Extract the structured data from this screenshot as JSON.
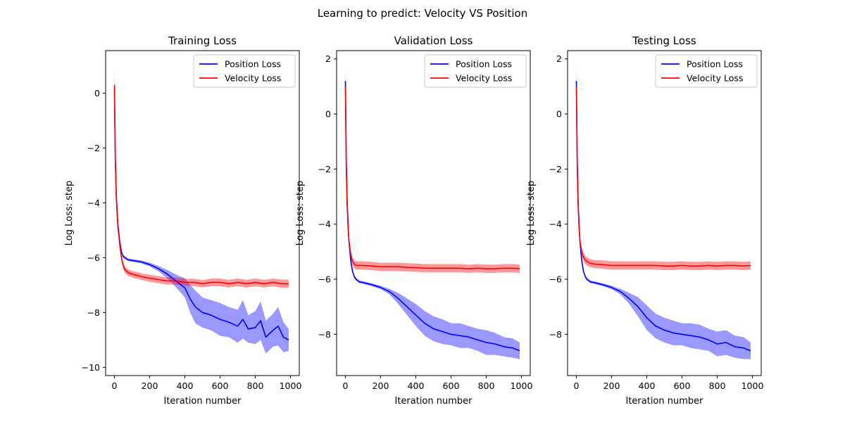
{
  "figure": {
    "title": "Learning to predict: Velocity VS Position"
  },
  "colors": {
    "position": "#0000ff",
    "velocity": "#ff0000"
  },
  "chart_data": [
    {
      "type": "line",
      "title": "Training Loss",
      "xlabel": "Iteration number",
      "ylabel": "Log Loss: step",
      "xlim": [
        -50,
        1050
      ],
      "ylim": [
        -10.3,
        1.55
      ],
      "xticks": [
        0,
        200,
        400,
        600,
        800,
        1000
      ],
      "yticks": [
        -10,
        -8,
        -6,
        -4,
        -2,
        0
      ],
      "legend": "top-right",
      "series": [
        {
          "name": "Position Loss",
          "color": "#0000ff",
          "x": [
            0,
            5,
            10,
            15,
            20,
            30,
            40,
            50,
            60,
            70,
            80,
            100,
            150,
            200,
            250,
            300,
            330,
            360,
            400,
            430,
            460,
            500,
            550,
            600,
            650,
            700,
            730,
            760,
            800,
            830,
            860,
            900,
            930,
            960,
            990
          ],
          "y": [
            0.1,
            -2.5,
            -3.6,
            -4.3,
            -4.8,
            -5.4,
            -5.8,
            -5.95,
            -6.0,
            -6.05,
            -6.08,
            -6.1,
            -6.15,
            -6.25,
            -6.4,
            -6.6,
            -6.75,
            -6.9,
            -7.1,
            -7.5,
            -7.8,
            -8.0,
            -8.1,
            -8.25,
            -8.35,
            -8.5,
            -8.25,
            -8.6,
            -8.55,
            -8.3,
            -8.9,
            -8.65,
            -8.5,
            -8.9,
            -9.0
          ],
          "band": [
            0.5,
            0.3,
            0.2,
            0.15,
            0.1,
            0.08,
            0.06,
            0.05,
            0.05,
            0.05,
            0.05,
            0.05,
            0.05,
            0.07,
            0.1,
            0.15,
            0.2,
            0.25,
            0.35,
            0.5,
            0.6,
            0.55,
            0.55,
            0.6,
            0.55,
            0.6,
            0.7,
            0.5,
            0.6,
            0.7,
            0.6,
            0.6,
            0.7,
            0.55,
            0.4
          ]
        },
        {
          "name": "Velocity Loss",
          "color": "#ff0000",
          "x": [
            0,
            5,
            10,
            15,
            20,
            30,
            40,
            50,
            60,
            70,
            80,
            100,
            130,
            160,
            200,
            250,
            300,
            350,
            400,
            450,
            500,
            550,
            600,
            650,
            700,
            750,
            800,
            850,
            900,
            950,
            990
          ],
          "y": [
            0.3,
            -2.4,
            -3.7,
            -4.4,
            -4.9,
            -5.5,
            -6.0,
            -6.3,
            -6.45,
            -6.5,
            -6.55,
            -6.6,
            -6.65,
            -6.7,
            -6.75,
            -6.8,
            -6.85,
            -6.85,
            -6.9,
            -6.9,
            -6.95,
            -6.9,
            -6.9,
            -6.95,
            -6.9,
            -6.95,
            -6.9,
            -6.95,
            -6.9,
            -6.95,
            -6.95
          ],
          "band": [
            0.6,
            0.3,
            0.25,
            0.2,
            0.15,
            0.15,
            0.12,
            0.12,
            0.12,
            0.12,
            0.12,
            0.12,
            0.12,
            0.12,
            0.13,
            0.13,
            0.13,
            0.13,
            0.13,
            0.13,
            0.13,
            0.14,
            0.14,
            0.14,
            0.14,
            0.14,
            0.14,
            0.14,
            0.14,
            0.15,
            0.15
          ]
        }
      ]
    },
    {
      "type": "line",
      "title": "Validation Loss",
      "xlabel": "Iteration number",
      "ylabel": "Log Loss: step",
      "xlim": [
        -50,
        1050
      ],
      "ylim": [
        -9.5,
        2.3
      ],
      "xticks": [
        0,
        200,
        400,
        600,
        800,
        1000
      ],
      "yticks": [
        -8,
        -6,
        -4,
        -2,
        0,
        2
      ],
      "legend": "top-right",
      "series": [
        {
          "name": "Position Loss",
          "color": "#0000ff",
          "x": [
            0,
            5,
            10,
            15,
            20,
            30,
            40,
            50,
            60,
            70,
            80,
            100,
            150,
            200,
            250,
            300,
            350,
            400,
            450,
            500,
            550,
            600,
            650,
            700,
            750,
            800,
            850,
            900,
            950,
            990
          ],
          "y": [
            1.2,
            -1.8,
            -3.2,
            -4.0,
            -4.6,
            -5.3,
            -5.7,
            -5.9,
            -6.0,
            -6.05,
            -6.1,
            -6.12,
            -6.2,
            -6.3,
            -6.45,
            -6.7,
            -7.0,
            -7.3,
            -7.6,
            -7.8,
            -7.9,
            -8.0,
            -8.05,
            -8.1,
            -8.2,
            -8.3,
            -8.35,
            -8.45,
            -8.5,
            -8.6
          ],
          "band": [
            0.5,
            0.3,
            0.2,
            0.15,
            0.1,
            0.08,
            0.06,
            0.05,
            0.05,
            0.05,
            0.05,
            0.05,
            0.05,
            0.06,
            0.1,
            0.2,
            0.3,
            0.4,
            0.45,
            0.45,
            0.45,
            0.4,
            0.45,
            0.4,
            0.4,
            0.45,
            0.4,
            0.35,
            0.35,
            0.3
          ]
        },
        {
          "name": "Velocity Loss",
          "color": "#ff0000",
          "x": [
            0,
            5,
            10,
            15,
            20,
            30,
            40,
            50,
            60,
            70,
            80,
            100,
            150,
            200,
            250,
            300,
            350,
            400,
            450,
            500,
            550,
            600,
            650,
            700,
            750,
            800,
            850,
            900,
            950,
            990
          ],
          "y": [
            1.0,
            -2.0,
            -3.3,
            -4.1,
            -4.6,
            -5.1,
            -5.35,
            -5.45,
            -5.5,
            -5.5,
            -5.5,
            -5.5,
            -5.52,
            -5.55,
            -5.55,
            -5.55,
            -5.57,
            -5.58,
            -5.6,
            -5.6,
            -5.6,
            -5.6,
            -5.6,
            -5.62,
            -5.6,
            -5.62,
            -5.62,
            -5.6,
            -5.6,
            -5.62
          ],
          "band": [
            0.6,
            0.3,
            0.25,
            0.2,
            0.15,
            0.15,
            0.15,
            0.15,
            0.15,
            0.15,
            0.15,
            0.15,
            0.15,
            0.15,
            0.15,
            0.15,
            0.15,
            0.15,
            0.15,
            0.15,
            0.15,
            0.15,
            0.15,
            0.15,
            0.15,
            0.15,
            0.15,
            0.15,
            0.15,
            0.15
          ]
        }
      ]
    },
    {
      "type": "line",
      "title": "Testing Loss",
      "xlabel": "Iteration number",
      "ylabel": "Log Loss: step",
      "xlim": [
        -50,
        1050
      ],
      "ylim": [
        -9.5,
        2.3
      ],
      "xticks": [
        0,
        200,
        400,
        600,
        800,
        1000
      ],
      "yticks": [
        -8,
        -6,
        -4,
        -2,
        0,
        2
      ],
      "legend": "top-right",
      "series": [
        {
          "name": "Position Loss",
          "color": "#0000ff",
          "x": [
            0,
            5,
            10,
            15,
            20,
            30,
            40,
            50,
            60,
            70,
            80,
            100,
            150,
            200,
            250,
            300,
            350,
            400,
            450,
            500,
            550,
            600,
            650,
            700,
            750,
            800,
            850,
            900,
            950,
            990
          ],
          "y": [
            1.2,
            -1.8,
            -3.2,
            -4.0,
            -4.6,
            -5.3,
            -5.7,
            -5.9,
            -6.0,
            -6.05,
            -6.1,
            -6.12,
            -6.2,
            -6.3,
            -6.45,
            -6.7,
            -7.0,
            -7.4,
            -7.7,
            -7.85,
            -7.95,
            -8.0,
            -8.05,
            -8.1,
            -8.2,
            -8.35,
            -8.3,
            -8.45,
            -8.5,
            -8.6
          ],
          "band": [
            0.5,
            0.3,
            0.2,
            0.15,
            0.1,
            0.08,
            0.06,
            0.05,
            0.05,
            0.05,
            0.05,
            0.05,
            0.05,
            0.06,
            0.1,
            0.2,
            0.35,
            0.45,
            0.45,
            0.45,
            0.45,
            0.4,
            0.45,
            0.45,
            0.4,
            0.45,
            0.45,
            0.4,
            0.4,
            0.3
          ]
        },
        {
          "name": "Velocity Loss",
          "color": "#ff0000",
          "x": [
            0,
            5,
            10,
            15,
            20,
            30,
            40,
            50,
            60,
            70,
            80,
            100,
            150,
            200,
            250,
            300,
            350,
            400,
            450,
            500,
            550,
            600,
            650,
            700,
            750,
            800,
            850,
            900,
            950,
            990
          ],
          "y": [
            1.0,
            -2.0,
            -3.3,
            -4.1,
            -4.6,
            -5.0,
            -5.2,
            -5.3,
            -5.35,
            -5.4,
            -5.42,
            -5.45,
            -5.47,
            -5.5,
            -5.5,
            -5.5,
            -5.5,
            -5.5,
            -5.5,
            -5.52,
            -5.52,
            -5.5,
            -5.52,
            -5.52,
            -5.5,
            -5.52,
            -5.5,
            -5.5,
            -5.52,
            -5.5
          ],
          "band": [
            0.6,
            0.3,
            0.25,
            0.2,
            0.15,
            0.15,
            0.15,
            0.15,
            0.15,
            0.15,
            0.15,
            0.15,
            0.15,
            0.15,
            0.15,
            0.15,
            0.15,
            0.15,
            0.15,
            0.15,
            0.15,
            0.15,
            0.15,
            0.15,
            0.15,
            0.15,
            0.15,
            0.15,
            0.15,
            0.15
          ]
        }
      ]
    }
  ]
}
